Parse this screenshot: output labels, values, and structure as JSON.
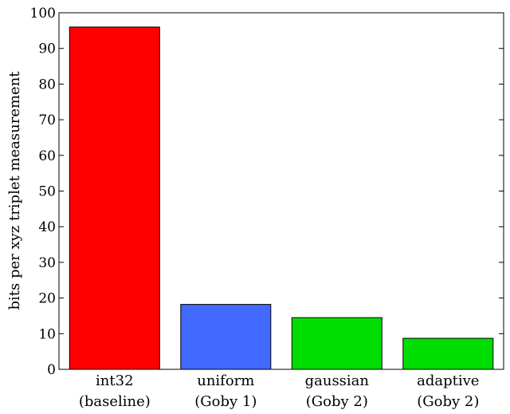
{
  "chart_data": {
    "type": "bar",
    "title": "",
    "xlabel": "",
    "ylabel": "bits per xyz triplet measurement",
    "ylim": [
      0,
      100
    ],
    "yticks": [
      0,
      10,
      20,
      30,
      40,
      50,
      60,
      70,
      80,
      90,
      100
    ],
    "grid": false,
    "categories": [
      {
        "line1": "int32",
        "line2": "(baseline)"
      },
      {
        "line1": "uniform",
        "line2": "(Goby 1)"
      },
      {
        "line1": "gaussian",
        "line2": "(Goby 2)"
      },
      {
        "line1": "adaptive",
        "line2": "(Goby 2)"
      }
    ],
    "values": [
      96,
      18.2,
      14.5,
      8.7
    ],
    "colors": [
      "#ff0000",
      "#4169ff",
      "#00dd00",
      "#00dd00"
    ]
  }
}
